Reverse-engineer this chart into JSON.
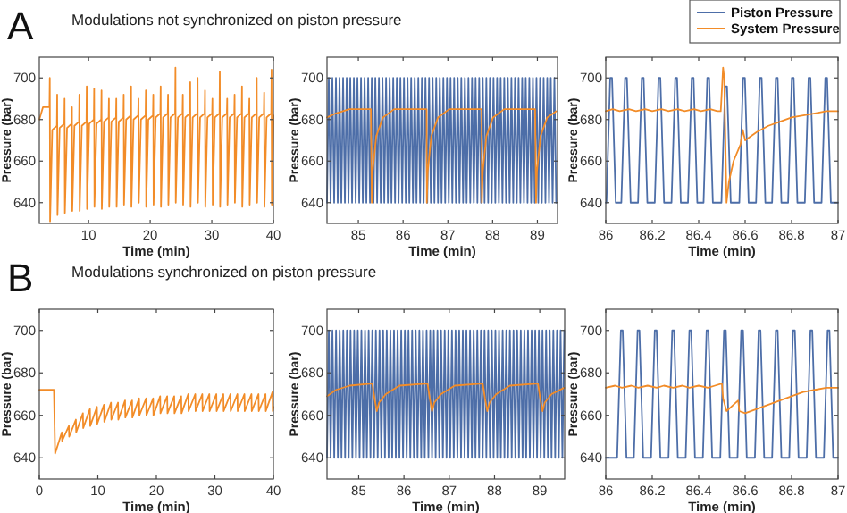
{
  "chart_data": [
    {
      "type": "line",
      "title": "Modulations not synchronized on piston pressure",
      "annotations": [
        "A"
      ],
      "xlabel": "Time (min)",
      "ylabel": "Pressure (bar)",
      "xlim": [
        2,
        40
      ],
      "xticks": [
        10,
        20,
        30,
        40
      ],
      "ylim": [
        630,
        710
      ],
      "yticks": [
        640,
        660,
        680,
        700
      ],
      "series": [
        {
          "color": "#f28c28",
          "x": [
            2,
            2.6,
            3.65,
            3.7,
            3.75,
            4.1,
            4.85,
            4.9,
            4.95,
            5.3,
            6.05,
            6.1,
            6.15,
            6.5,
            7.25,
            7.3,
            7.35,
            7.7,
            8.45,
            8.5,
            8.55,
            8.9,
            9.65,
            9.7,
            9.75,
            10.1,
            10.85,
            10.9,
            10.95,
            11.3,
            12.05,
            12.1,
            12.15,
            12.5,
            13.25,
            13.3,
            13.35,
            13.7,
            14.45,
            14.5,
            14.55,
            14.9,
            15.65,
            15.7,
            15.75,
            16.1,
            16.85,
            16.9,
            16.95,
            17.3,
            18.05,
            18.1,
            18.15,
            18.5,
            19.25,
            19.3,
            19.35,
            19.7,
            20.45,
            20.5,
            20.55,
            20.9,
            21.65,
            21.7,
            21.75,
            22.1,
            22.85,
            22.9,
            22.95,
            23.3,
            24.05,
            24.1,
            24.15,
            24.5,
            25.25,
            25.3,
            25.35,
            25.7,
            26.45,
            26.5,
            26.55,
            26.9,
            27.65,
            27.7,
            27.75,
            28.1,
            28.85,
            28.9,
            28.95,
            29.3,
            30.05,
            30.1,
            30.15,
            30.5,
            31.25,
            31.3,
            31.35,
            31.7,
            32.45,
            32.5,
            32.55,
            32.9,
            33.65,
            33.7,
            33.75,
            34.1,
            34.85,
            34.9,
            34.95,
            35.3,
            36.05,
            36.1,
            36.15,
            36.5,
            37.25,
            37.3,
            37.35,
            37.7,
            38.45,
            38.5,
            38.55,
            38.9,
            39.65,
            39.7,
            39.75,
            40
          ],
          "values": [
            680,
            686,
            686,
            700,
            631,
            675,
            677,
            692,
            634,
            676,
            678,
            690,
            635,
            676,
            678,
            686,
            636,
            677,
            679,
            692,
            636,
            677,
            679,
            696,
            637,
            678,
            680,
            695,
            638,
            678,
            680,
            694,
            637,
            679,
            681,
            690,
            638,
            679,
            681,
            690,
            638,
            679,
            681,
            692,
            639,
            680,
            682,
            696,
            638,
            680,
            682,
            690,
            640,
            680,
            682,
            694,
            638,
            680,
            682,
            692,
            639,
            681,
            683,
            696,
            638,
            681,
            683,
            692,
            639,
            681,
            683,
            705,
            640,
            681,
            683,
            692,
            639,
            681,
            683,
            698,
            638,
            681,
            683,
            700,
            640,
            681,
            683,
            694,
            638,
            681,
            683,
            690,
            639,
            681,
            683,
            703,
            638,
            681,
            683,
            690,
            639,
            681,
            683,
            692,
            640,
            681,
            683,
            696,
            638,
            681,
            683,
            690,
            639,
            681,
            683,
            700,
            640,
            681,
            683,
            693,
            638,
            681,
            683,
            704,
            639,
            682
          ]
        }
      ]
    },
    {
      "type": "line",
      "xlabel": "Time (min)",
      "ylabel": "Pressure (bar)",
      "xlim": [
        84.3,
        89.45
      ],
      "xticks": [
        85,
        86,
        87,
        88,
        89
      ],
      "ylim": [
        630,
        710
      ],
      "yticks": [
        640,
        660,
        680,
        700
      ],
      "series": [
        {
          "color": "#4d6ea8",
          "x": [
            84.3,
            84.34,
            84.38,
            84.42,
            84.46,
            84.5,
            84.54,
            84.58,
            84.62,
            84.66,
            84.7,
            84.74,
            84.78,
            84.82,
            84.86,
            84.9,
            84.94,
            84.98,
            85.02,
            85.06,
            85.1,
            85.14,
            85.18,
            85.22,
            85.26,
            85.3,
            85.34,
            85.38,
            85.42,
            85.46,
            85.5,
            85.54,
            85.58,
            85.62,
            85.66,
            85.7,
            85.74,
            85.78,
            85.82,
            85.86,
            85.9,
            85.94,
            85.98,
            86.02,
            86.06,
            86.1,
            86.14,
            86.18,
            86.22,
            86.26,
            86.3,
            86.34,
            86.38,
            86.42,
            86.46,
            86.5,
            86.54,
            86.58,
            86.62,
            86.66,
            86.7,
            86.74,
            86.78,
            86.82,
            86.86,
            86.9,
            86.94,
            86.98,
            87.02,
            87.06,
            87.1,
            87.14,
            87.18,
            87.22,
            87.26,
            87.3,
            87.34,
            87.38,
            87.42,
            87.46,
            87.5,
            87.54,
            87.58,
            87.62,
            87.66,
            87.7,
            87.74,
            87.78,
            87.82,
            87.86,
            87.9,
            87.94,
            87.98,
            88.02,
            88.06,
            88.1,
            88.14,
            88.18,
            88.22,
            88.26,
            88.3,
            88.34,
            88.38,
            88.42,
            88.46,
            88.5,
            88.54,
            88.58,
            88.62,
            88.66,
            88.7,
            88.74,
            88.78,
            88.82,
            88.86,
            88.9,
            88.94,
            88.98,
            89.02,
            89.06,
            89.1,
            89.14,
            89.18,
            89.22,
            89.26,
            89.3,
            89.34,
            89.38,
            89.42
          ],
          "values": [
            640,
            700,
            640,
            700,
            640,
            700,
            640,
            700,
            640,
            700,
            640,
            700,
            640,
            700,
            640,
            700,
            640,
            700,
            640,
            700,
            640,
            700,
            640,
            700,
            640,
            700,
            640,
            700,
            640,
            700,
            640,
            700,
            640,
            700,
            640,
            700,
            640,
            700,
            640,
            700,
            640,
            700,
            640,
            700,
            640,
            700,
            640,
            700,
            640,
            700,
            640,
            700,
            640,
            700,
            640,
            700,
            640,
            700,
            640,
            700,
            640,
            700,
            640,
            700,
            640,
            700,
            640,
            700,
            640,
            700,
            640,
            700,
            640,
            700,
            640,
            700,
            640,
            700,
            640,
            700,
            640,
            700,
            640,
            700,
            640,
            700,
            640,
            700,
            640,
            700,
            640,
            700,
            640,
            700,
            640,
            700,
            640,
            700,
            640,
            700,
            640,
            700,
            640,
            700,
            640,
            700,
            640,
            700,
            640,
            700,
            640,
            700,
            640,
            700,
            640,
            700,
            640,
            700,
            640,
            700,
            640,
            700,
            640,
            700,
            640,
            700,
            640,
            700,
            640
          ]
        },
        {
          "color": "#f28c28",
          "x": [
            84.3,
            84.5,
            84.8,
            85.28,
            85.3,
            85.32,
            85.4,
            85.55,
            85.8,
            86.51,
            86.52,
            86.525,
            86.53,
            86.55,
            86.63,
            86.78,
            87.03,
            87.74,
            87.75,
            87.755,
            87.76,
            87.78,
            87.86,
            88.01,
            88.26,
            88.95,
            88.97,
            88.99,
            89.07,
            89.22,
            89.42
          ],
          "values": [
            681,
            683,
            685,
            685,
            640,
            655,
            672,
            681,
            685,
            685,
            null,
            685,
            640,
            655,
            672,
            681,
            685,
            685,
            null,
            685,
            640,
            655,
            672,
            681,
            685,
            685,
            640,
            655,
            672,
            681,
            684
          ]
        }
      ]
    },
    {
      "type": "line",
      "legend": "top right",
      "xlabel": "Time (min)",
      "ylabel": "Pressure (bar)",
      "xlim": [
        86,
        87
      ],
      "xticks": [
        86,
        86.2,
        86.4,
        86.6,
        86.8,
        87
      ],
      "ylim": [
        630,
        710
      ],
      "yticks": [
        640,
        660,
        680,
        700
      ],
      "series": [
        {
          "name": "Piston Pressure",
          "color": "#4d6ea8",
          "x": [
            86,
            86.003,
            86.019,
            86.027,
            86.043,
            86.067,
            86.083,
            86.091,
            86.107,
            86.139,
            86.155,
            86.163,
            86.179,
            86.211,
            86.227,
            86.235,
            86.251,
            86.283,
            86.299,
            86.307,
            86.323,
            86.354,
            86.37,
            86.378,
            86.394,
            86.421,
            86.437,
            86.445,
            86.461,
            86.498,
            86.514,
            86.522,
            86.538,
            86.575,
            86.591,
            86.599,
            86.615,
            86.647,
            86.663,
            86.671,
            86.687,
            86.716,
            86.732,
            86.74,
            86.756,
            86.785,
            86.801,
            86.809,
            86.825,
            86.857,
            86.873,
            86.881,
            86.897,
            86.929,
            86.945,
            86.953,
            86.969,
            87
          ],
          "values": [
            640,
            640,
            700,
            700,
            640,
            640,
            700,
            700,
            640,
            640,
            700,
            700,
            640,
            640,
            700,
            700,
            640,
            640,
            700,
            700,
            640,
            640,
            700,
            700,
            640,
            640,
            700,
            700,
            640,
            640,
            696,
            696,
            640,
            640,
            700,
            700,
            640,
            640,
            700,
            700,
            640,
            640,
            700,
            700,
            640,
            640,
            700,
            700,
            640,
            640,
            700,
            700,
            640,
            640,
            700,
            700,
            640,
            640
          ]
        },
        {
          "name": "System Pressure",
          "color": "#f28c28",
          "x": [
            86,
            86.03,
            86.06,
            86.1,
            86.13,
            86.17,
            86.2,
            86.24,
            86.27,
            86.31,
            86.34,
            86.38,
            86.41,
            86.45,
            86.48,
            86.495,
            86.5,
            86.505,
            86.51,
            86.52,
            86.53,
            86.55,
            86.58,
            86.59,
            86.6,
            86.65,
            86.7,
            86.75,
            86.8,
            86.85,
            86.9,
            86.95,
            87
          ],
          "values": [
            684,
            685,
            684,
            685,
            684,
            685,
            684,
            685,
            684,
            685,
            684,
            685,
            684,
            685,
            684,
            684,
            null,
            705,
            700,
            640,
            650,
            660,
            668,
            675,
            670,
            674,
            677,
            679,
            681,
            682,
            683,
            684,
            684
          ]
        }
      ]
    },
    {
      "type": "line",
      "title": "Modulations synchronized on piston pressure",
      "annotations": [
        "B"
      ],
      "xlabel": "Time (min)",
      "ylabel": "Pressure (bar)",
      "xlim": [
        0,
        40
      ],
      "xticks": [
        0,
        10,
        20,
        30,
        40
      ],
      "ylim": [
        630,
        710
      ],
      "yticks": [
        640,
        660,
        680,
        700
      ],
      "series": [
        {
          "color": "#f28c28",
          "x": [
            0,
            2.5,
            2.7,
            3.85,
            3.9,
            5.05,
            5.1,
            6.25,
            6.3,
            7.45,
            7.5,
            8.65,
            8.7,
            9.85,
            9.9,
            11.05,
            11.1,
            12.25,
            12.3,
            13.45,
            13.5,
            14.65,
            14.7,
            15.85,
            15.9,
            17.05,
            17.1,
            18.25,
            18.3,
            19.45,
            19.5,
            20.65,
            20.7,
            21.85,
            21.9,
            23.05,
            23.1,
            24.25,
            24.3,
            25.45,
            25.5,
            26.65,
            26.7,
            27.85,
            27.9,
            29.05,
            29.1,
            30.25,
            30.3,
            31.45,
            31.5,
            32.65,
            32.7,
            33.85,
            33.9,
            35.05,
            35.1,
            36.25,
            36.3,
            37.45,
            37.5,
            38.65,
            38.7,
            39.85,
            39.9,
            40
          ],
          "values": [
            672,
            672,
            642,
            652,
            648,
            655,
            650,
            658,
            652,
            661,
            654,
            663,
            655,
            664,
            656,
            665,
            657,
            666,
            658,
            666,
            658,
            667,
            659,
            667,
            659,
            668,
            660,
            668,
            660,
            668,
            660,
            669,
            661,
            669,
            661,
            669,
            661,
            669,
            661,
            670,
            662,
            670,
            662,
            670,
            662,
            670,
            662,
            670,
            662,
            670,
            662,
            670,
            662,
            670,
            662,
            670,
            662,
            670,
            662,
            670,
            662,
            670,
            662,
            671,
            662,
            664
          ]
        }
      ]
    },
    {
      "type": "line",
      "xlabel": "Time (min)",
      "ylabel": "Pressure (bar)",
      "xlim": [
        84.3,
        89.55
      ],
      "xticks": [
        85,
        86,
        87,
        88,
        89
      ],
      "ylim": [
        630,
        710
      ],
      "yticks": [
        640,
        660,
        680,
        700
      ],
      "series": [
        {
          "color": "#4d6ea8",
          "x": [
            84.3,
            84.34,
            84.38,
            84.42,
            84.46,
            84.5,
            84.54,
            84.58,
            84.62,
            84.66,
            84.7,
            84.74,
            84.78,
            84.82,
            84.86,
            84.9,
            84.94,
            84.98,
            85.02,
            85.06,
            85.1,
            85.14,
            85.18,
            85.22,
            85.26,
            85.3,
            85.34,
            85.38,
            85.42,
            85.46,
            85.5,
            85.54,
            85.58,
            85.62,
            85.66,
            85.7,
            85.74,
            85.78,
            85.82,
            85.86,
            85.9,
            85.94,
            85.98,
            86.02,
            86.06,
            86.1,
            86.14,
            86.18,
            86.22,
            86.26,
            86.3,
            86.34,
            86.38,
            86.42,
            86.46,
            86.5,
            86.54,
            86.58,
            86.62,
            86.66,
            86.7,
            86.74,
            86.78,
            86.82,
            86.86,
            86.9,
            86.94,
            86.98,
            87.02,
            87.06,
            87.1,
            87.14,
            87.18,
            87.22,
            87.26,
            87.3,
            87.34,
            87.38,
            87.42,
            87.46,
            87.5,
            87.54,
            87.58,
            87.62,
            87.66,
            87.7,
            87.74,
            87.78,
            87.82,
            87.86,
            87.9,
            87.94,
            87.98,
            88.02,
            88.06,
            88.1,
            88.14,
            88.18,
            88.22,
            88.26,
            88.3,
            88.34,
            88.38,
            88.42,
            88.46,
            88.5,
            88.54,
            88.58,
            88.62,
            88.66,
            88.7,
            88.74,
            88.78,
            88.82,
            88.86,
            88.9,
            88.94,
            88.98,
            89.02,
            89.06,
            89.1,
            89.14,
            89.18,
            89.22,
            89.26,
            89.3,
            89.34,
            89.38,
            89.42,
            89.46,
            89.5,
            89.54
          ],
          "values": [
            640,
            700,
            640,
            700,
            640,
            700,
            640,
            700,
            640,
            700,
            640,
            700,
            640,
            700,
            640,
            700,
            640,
            700,
            640,
            700,
            640,
            700,
            640,
            700,
            640,
            700,
            640,
            700,
            640,
            700,
            640,
            700,
            640,
            700,
            640,
            700,
            640,
            700,
            640,
            700,
            640,
            700,
            640,
            700,
            640,
            700,
            640,
            700,
            640,
            700,
            640,
            700,
            640,
            700,
            640,
            700,
            640,
            700,
            640,
            700,
            640,
            700,
            640,
            700,
            640,
            700,
            640,
            700,
            640,
            700,
            640,
            700,
            640,
            700,
            640,
            700,
            640,
            700,
            640,
            700,
            640,
            700,
            640,
            700,
            640,
            700,
            640,
            700,
            640,
            700,
            640,
            700,
            640,
            700,
            640,
            700,
            640,
            700,
            640,
            700,
            640,
            700,
            640,
            700,
            640,
            700,
            640,
            700,
            640,
            700,
            640,
            700,
            640,
            700,
            640,
            700,
            640,
            700,
            640,
            700,
            640,
            700,
            640,
            700,
            640,
            700,
            640,
            700,
            640,
            700,
            640,
            700
          ]
        },
        {
          "color": "#f28c28",
          "x": [
            84.3,
            84.5,
            84.8,
            85.3,
            85.35,
            85.4,
            85.45,
            85.6,
            85.9,
            86.52,
            86.57,
            86.62,
            86.67,
            86.82,
            87.12,
            87.74,
            87.79,
            87.84,
            87.89,
            88.04,
            88.34,
            88.96,
            89.01,
            89.06,
            89.11,
            89.26,
            89.54
          ],
          "values": [
            669,
            672,
            674,
            675,
            668,
            662,
            666,
            670,
            674,
            675,
            668,
            662,
            666,
            670,
            674,
            675,
            668,
            662,
            666,
            670,
            674,
            675,
            668,
            662,
            666,
            670,
            673
          ]
        }
      ]
    },
    {
      "type": "line",
      "xlabel": "Time (min)",
      "ylabel": "Pressure (bar)",
      "xlim": [
        86,
        87
      ],
      "xticks": [
        86,
        86.2,
        86.4,
        86.6,
        86.8,
        87
      ],
      "ylim": [
        630,
        710
      ],
      "yticks": [
        640,
        660,
        680,
        700
      ],
      "series": [
        {
          "color": "#4d6ea8",
          "x": [
            86,
            86.049,
            86.065,
            86.073,
            86.089,
            86.121,
            86.137,
            86.145,
            86.161,
            86.195,
            86.211,
            86.219,
            86.235,
            86.27,
            86.286,
            86.294,
            86.31,
            86.344,
            86.36,
            86.368,
            86.384,
            86.418,
            86.434,
            86.442,
            86.458,
            86.493,
            86.509,
            86.517,
            86.533,
            86.567,
            86.583,
            86.591,
            86.607,
            86.642,
            86.658,
            86.666,
            86.682,
            86.716,
            86.732,
            86.74,
            86.756,
            86.79,
            86.806,
            86.814,
            86.83,
            86.865,
            86.881,
            86.889,
            86.905,
            86.939,
            86.955,
            86.963,
            86.979,
            87
          ],
          "values": [
            640,
            640,
            700,
            700,
            640,
            640,
            700,
            700,
            640,
            640,
            700,
            700,
            640,
            640,
            700,
            700,
            640,
            640,
            700,
            700,
            640,
            640,
            700,
            700,
            640,
            640,
            700,
            700,
            640,
            640,
            700,
            700,
            640,
            640,
            700,
            700,
            640,
            640,
            700,
            700,
            640,
            640,
            700,
            700,
            640,
            640,
            700,
            700,
            640,
            640,
            700,
            700,
            640,
            640
          ]
        },
        {
          "color": "#f28c28",
          "x": [
            86,
            86.04,
            86.07,
            86.11,
            86.14,
            86.18,
            86.22,
            86.25,
            86.29,
            86.33,
            86.36,
            86.4,
            86.44,
            86.47,
            86.5,
            86.505,
            86.52,
            86.55,
            86.57,
            86.575,
            86.6,
            86.65,
            86.7,
            86.75,
            86.8,
            86.85,
            86.9,
            86.95,
            87
          ],
          "values": [
            673,
            674,
            673,
            674,
            673,
            674,
            673,
            674,
            673,
            674,
            673,
            674,
            673,
            674,
            675,
            668,
            662,
            665,
            667,
            662,
            661,
            663,
            665,
            667,
            669,
            671,
            672,
            673,
            673
          ]
        }
      ]
    }
  ]
}
